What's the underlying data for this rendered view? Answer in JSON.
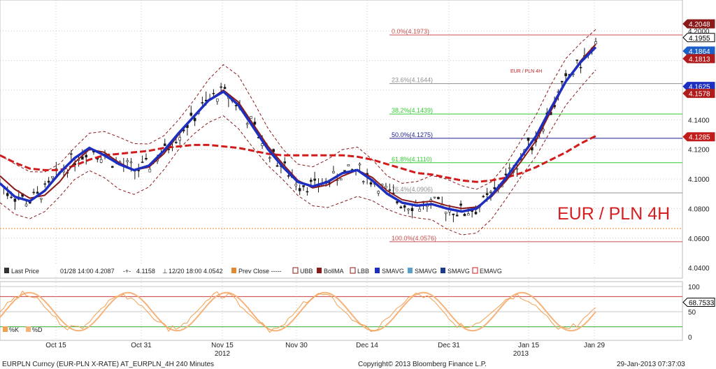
{
  "colors": {
    "price": "#1b1b1b",
    "ubb": "#8b1a1a",
    "bollma": "#8b1a1a",
    "smavg_fast": "#5aa0c8",
    "smavg_mid": "#1c2fc0",
    "emavg": "#d21c1c",
    "stoch_k": "#f0a050",
    "stoch_d": "#f7b27a",
    "fib_red": "#c85050",
    "fib_green": "#33cc33",
    "fib_blue": "#1c1c8c",
    "fib_gray": "#909090",
    "orange_line": "#e08a2e"
  },
  "chart_data": {
    "type": "line",
    "title": "EUR / PLN 4H",
    "small_title": "EUR / PLN 4H",
    "yaxis": {
      "ticks": [
        "4.2000",
        "4.1800",
        "4.1600",
        "4.1400",
        "4.1200",
        "4.1000",
        "4.0800",
        "4.0600",
        "4.0400"
      ],
      "range": [
        4.033,
        4.219
      ]
    },
    "xaxis": {
      "ticks": [
        "Oct 15",
        "Oct 31",
        "Nov 15",
        "Nov 30",
        "Dec 14",
        "Dec 31",
        "Jan 15",
        "Jan 29"
      ],
      "year_labels": [
        "2012",
        "2013"
      ]
    },
    "price_labels": [
      "4.2048",
      "4.1955",
      "4.1864",
      "4.1813",
      "4.1625",
      "4.1578",
      "4.1285"
    ],
    "fib_levels": [
      {
        "label": "0.0%(4.1973)",
        "value": 4.1973
      },
      {
        "label": "23.6%(4.1644)",
        "value": 4.1644
      },
      {
        "label": "38.2%(4.1439)",
        "value": 4.1439
      },
      {
        "label": "50.0%(4.1275)",
        "value": 4.1275
      },
      {
        "label": "61.8%(4.1110)",
        "value": 4.111
      },
      {
        "label": "76.4%(4.0906)",
        "value": 4.0906
      },
      {
        "label": "100.0%(4.0576)",
        "value": 4.0576
      }
    ],
    "prev_close": 4.0665,
    "series": [
      {
        "name": "SMAVG",
        "values": [
          4.097,
          4.088,
          4.085,
          4.092,
          4.104,
          4.114,
          4.121,
          4.116,
          4.11,
          4.106,
          4.109,
          4.119,
          4.131,
          4.142,
          4.153,
          4.159,
          4.15,
          4.135,
          4.12,
          4.108,
          4.098,
          4.095,
          4.098,
          4.104,
          4.106,
          4.099,
          4.09,
          4.084,
          4.082,
          4.083,
          4.08,
          4.078,
          4.08,
          4.089,
          4.101,
          4.115,
          4.129,
          4.148,
          4.166,
          4.179,
          4.189
        ]
      },
      {
        "name": "SMAVG",
        "values": [
          4.116,
          4.111,
          4.107,
          4.106,
          4.106,
          4.109,
          4.113,
          4.116,
          4.117,
          4.118,
          4.119,
          4.121,
          4.122,
          4.123,
          4.123,
          4.122,
          4.121,
          4.119,
          4.117,
          4.116,
          4.116,
          4.116,
          4.116,
          4.116,
          4.115,
          4.113,
          4.11,
          4.107,
          4.104,
          4.103,
          4.101,
          4.099,
          4.098,
          4.099,
          4.101,
          4.104,
          4.108,
          4.113,
          4.118,
          4.124,
          4.129
        ]
      },
      {
        "name": "BollMA",
        "values": [
          4.102,
          4.093,
          4.087,
          4.089,
          4.098,
          4.111,
          4.12,
          4.118,
          4.111,
          4.106,
          4.108,
          4.117,
          4.13,
          4.142,
          4.153,
          4.16,
          4.152,
          4.137,
          4.122,
          4.11,
          4.099,
          4.094,
          4.096,
          4.102,
          4.106,
          4.101,
          4.092,
          4.086,
          4.084,
          4.085,
          4.082,
          4.08,
          4.081,
          4.088,
          4.099,
          4.112,
          4.126,
          4.146,
          4.166,
          4.18,
          4.191
        ]
      }
    ],
    "stochastic": {
      "ticks": [
        "100",
        "50",
        "0"
      ],
      "last_value": "68.7533",
      "legend": [
        "%K",
        "%D"
      ]
    },
    "footer": {
      "left": "EURPLN Curncy (EUR-PLN X-RATE) AT_EURPLN_4H  240 Minutes",
      "center": "Copyright© 2013 Bloomberg Finance L.P.",
      "right": "29-Jan-2013 07:37:03"
    }
  },
  "legend": {
    "items": [
      {
        "label": "Last Price",
        "value": "01/28 14:00 4.2087"
      },
      {
        "label": "",
        "value": "4.1158"
      },
      {
        "label": "",
        "value": "12/20 18:00 4.0542"
      },
      {
        "label": "Prev Close -----",
        "value": ""
      },
      {
        "label": "UBB",
        "value": ""
      },
      {
        "label": "BollMA",
        "value": ""
      },
      {
        "label": "LBB",
        "value": ""
      },
      {
        "label": "SMAVG",
        "value": ""
      },
      {
        "label": "SMAVG",
        "value": ""
      },
      {
        "label": "SMAVG",
        "value": ""
      },
      {
        "label": "EMAVG",
        "value": ""
      }
    ]
  }
}
